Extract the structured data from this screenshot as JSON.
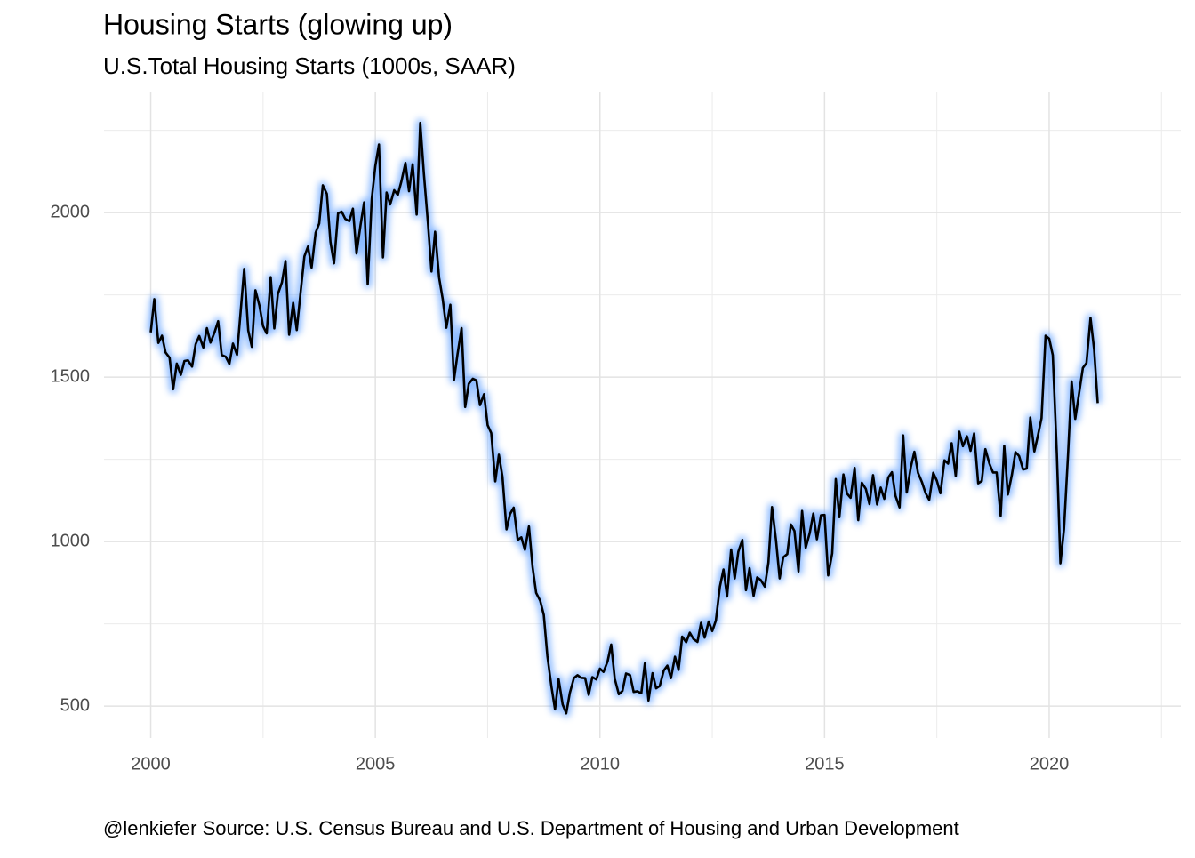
{
  "chart_data": {
    "type": "line",
    "title": "Housing Starts (glowing up)",
    "subtitle": "U.S.Total Housing Starts (1000s, SAAR)",
    "caption": "@lenkiefer Source: U.S. Census Bureau and U.S. Department of Housing and Urban Development",
    "x": [
      2000.0,
      2000.08,
      2000.17,
      2000.25,
      2000.33,
      2000.42,
      2000.5,
      2000.58,
      2000.67,
      2000.75,
      2000.83,
      2000.92,
      2001.0,
      2001.08,
      2001.17,
      2001.25,
      2001.33,
      2001.42,
      2001.5,
      2001.58,
      2001.67,
      2001.75,
      2001.83,
      2001.92,
      2002.0,
      2002.08,
      2002.17,
      2002.25,
      2002.33,
      2002.42,
      2002.5,
      2002.58,
      2002.67,
      2002.75,
      2002.83,
      2002.92,
      2003.0,
      2003.08,
      2003.17,
      2003.25,
      2003.33,
      2003.42,
      2003.5,
      2003.58,
      2003.67,
      2003.75,
      2003.83,
      2003.92,
      2004.0,
      2004.08,
      2004.17,
      2004.25,
      2004.33,
      2004.42,
      2004.5,
      2004.58,
      2004.67,
      2004.75,
      2004.83,
      2004.92,
      2005.0,
      2005.08,
      2005.17,
      2005.25,
      2005.33,
      2005.42,
      2005.5,
      2005.58,
      2005.67,
      2005.75,
      2005.83,
      2005.92,
      2006.0,
      2006.08,
      2006.17,
      2006.25,
      2006.33,
      2006.42,
      2006.5,
      2006.58,
      2006.67,
      2006.75,
      2006.83,
      2006.92,
      2007.0,
      2007.08,
      2007.17,
      2007.25,
      2007.33,
      2007.42,
      2007.5,
      2007.58,
      2007.67,
      2007.75,
      2007.83,
      2007.92,
      2008.0,
      2008.08,
      2008.17,
      2008.25,
      2008.33,
      2008.42,
      2008.5,
      2008.58,
      2008.67,
      2008.75,
      2008.83,
      2008.92,
      2009.0,
      2009.08,
      2009.17,
      2009.25,
      2009.33,
      2009.42,
      2009.5,
      2009.58,
      2009.67,
      2009.75,
      2009.83,
      2009.92,
      2010.0,
      2010.08,
      2010.17,
      2010.25,
      2010.33,
      2010.42,
      2010.5,
      2010.58,
      2010.67,
      2010.75,
      2010.83,
      2010.92,
      2011.0,
      2011.08,
      2011.17,
      2011.25,
      2011.33,
      2011.42,
      2011.5,
      2011.58,
      2011.67,
      2011.75,
      2011.83,
      2011.92,
      2012.0,
      2012.08,
      2012.17,
      2012.25,
      2012.33,
      2012.42,
      2012.5,
      2012.58,
      2012.67,
      2012.75,
      2012.83,
      2012.92,
      2013.0,
      2013.08,
      2013.17,
      2013.25,
      2013.33,
      2013.42,
      2013.5,
      2013.58,
      2013.67,
      2013.75,
      2013.83,
      2013.92,
      2014.0,
      2014.08,
      2014.17,
      2014.25,
      2014.33,
      2014.42,
      2014.5,
      2014.58,
      2014.67,
      2014.75,
      2014.83,
      2014.92,
      2015.0,
      2015.08,
      2015.17,
      2015.25,
      2015.33,
      2015.42,
      2015.5,
      2015.58,
      2015.67,
      2015.75,
      2015.83,
      2015.92,
      2016.0,
      2016.08,
      2016.17,
      2016.25,
      2016.33,
      2016.42,
      2016.5,
      2016.58,
      2016.67,
      2016.75,
      2016.83,
      2016.92,
      2017.0,
      2017.08,
      2017.17,
      2017.25,
      2017.33,
      2017.42,
      2017.5,
      2017.58,
      2017.67,
      2017.75,
      2017.83,
      2017.92,
      2018.0,
      2018.08,
      2018.17,
      2018.25,
      2018.33,
      2018.42,
      2018.5,
      2018.58,
      2018.67,
      2018.75,
      2018.83,
      2018.92,
      2019.0,
      2019.08,
      2019.17,
      2019.25,
      2019.33,
      2019.42,
      2019.5,
      2019.58,
      2019.67,
      2019.75,
      2019.83,
      2019.92,
      2020.0,
      2020.08,
      2020.17,
      2020.25,
      2020.33,
      2020.42,
      2020.5,
      2020.58,
      2020.67,
      2020.75,
      2020.83,
      2020.92,
      2021.0,
      2021.08
    ],
    "series": [
      {
        "color": "#000000",
        "glow": "#3d8bff",
        "values": [
          1636,
          1737,
          1604,
          1626,
          1575,
          1559,
          1463,
          1541,
          1507,
          1549,
          1551,
          1532,
          1600,
          1625,
          1590,
          1649,
          1605,
          1636,
          1670,
          1567,
          1562,
          1540,
          1602,
          1568,
          1698,
          1829,
          1642,
          1592,
          1764,
          1717,
          1655,
          1633,
          1804,
          1648,
          1753,
          1788,
          1853,
          1629,
          1726,
          1643,
          1751,
          1867,
          1897,
          1833,
          1939,
          1967,
          2083,
          2057,
          1911,
          1846,
          1998,
          2003,
          1981,
          1974,
          2012,
          1876,
          1962,
          2031,
          1782,
          2042,
          2142,
          2207,
          1864,
          2061,
          2025,
          2068,
          2054,
          2095,
          2151,
          2065,
          2147,
          1994,
          2273,
          2119,
          1969,
          1821,
          1942,
          1802,
          1737,
          1650,
          1720,
          1491,
          1570,
          1649,
          1409,
          1480,
          1495,
          1490,
          1415,
          1448,
          1354,
          1330,
          1183,
          1264,
          1197,
          1037,
          1084,
          1103,
          1005,
          1013,
          975,
          1046,
          923,
          844,
          820,
          777,
          652,
          560,
          490,
          582,
          505,
          478,
          540,
          585,
          594,
          586,
          585,
          534,
          588,
          581,
          614,
          604,
          636,
          687,
          583,
          536,
          546,
          599,
          594,
          543,
          545,
          539,
          630,
          517,
          600,
          554,
          561,
          608,
          623,
          585,
          650,
          610,
          711,
          694,
          723,
          704,
          695,
          753,
          708,
          757,
          728,
          760,
          863,
          915,
          833,
          976,
          888,
          969,
          1005,
          852,
          919,
          835,
          891,
          883,
          863,
          936,
          1105,
          1003,
          888,
          952,
          962,
          1052,
          1032,
          909,
          1093,
          981,
          1026,
          1085,
          1007,
          1080,
          1081,
          897,
          964,
          1190,
          1074,
          1204,
          1146,
          1133,
          1224,
          1065,
          1179,
          1160,
          1114,
          1202,
          1113,
          1164,
          1130,
          1195,
          1211,
          1139,
          1104,
          1323,
          1149,
          1226,
          1273,
          1209,
          1180,
          1147,
          1127,
          1209,
          1185,
          1147,
          1247,
          1237,
          1299,
          1199,
          1334,
          1290,
          1320,
          1276,
          1329,
          1177,
          1184,
          1281,
          1237,
          1210,
          1210,
          1078,
          1291,
          1143,
          1203,
          1272,
          1260,
          1219,
          1222,
          1377,
          1274,
          1323,
          1375,
          1626,
          1617,
          1567,
          1269,
          934,
          1038,
          1265,
          1487,
          1373,
          1455,
          1528,
          1543,
          1680,
          1584,
          1421
        ]
      }
    ],
    "xlim": [
      1998.96,
      2022.93
    ],
    "ylim": [
      403,
      2368
    ],
    "xticks": [
      2000,
      2005,
      2010,
      2015,
      2020
    ],
    "yticks": [
      500,
      1000,
      1500,
      2000
    ],
    "grid": true
  }
}
